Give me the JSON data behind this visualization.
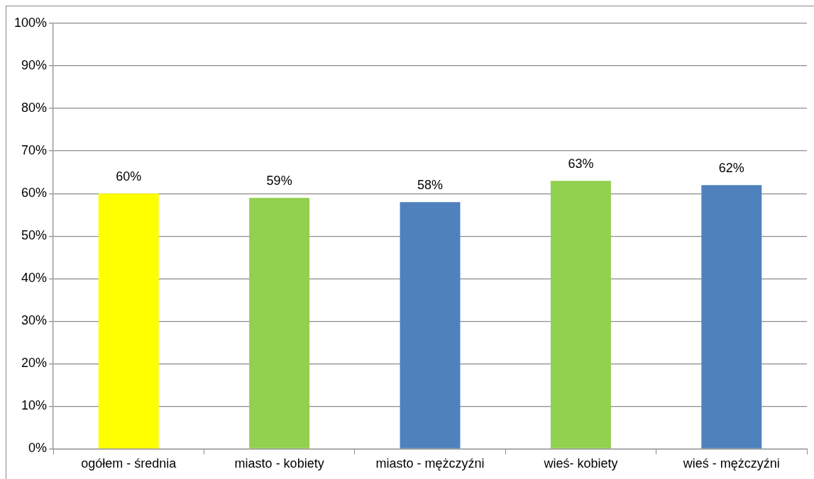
{
  "chart_data": {
    "type": "bar",
    "categories": [
      "ogółem - średnia",
      "miasto - kobiety",
      "miasto - mężczyźni",
      "wieś- kobiety",
      "wieś - mężczyźni"
    ],
    "values": [
      60,
      59,
      58,
      63,
      62
    ],
    "colors": [
      "#ffff00",
      "#92d050",
      "#4f81bd",
      "#92d050",
      "#4f81bd"
    ],
    "value_labels": [
      "60%",
      "59%",
      "58%",
      "63%",
      "62%"
    ],
    "ylim": [
      0,
      100
    ],
    "yticks": [
      {
        "value": 0,
        "label": "0%"
      },
      {
        "value": 10,
        "label": "10%"
      },
      {
        "value": 20,
        "label": "20%"
      },
      {
        "value": 30,
        "label": "30%"
      },
      {
        "value": 40,
        "label": "40%"
      },
      {
        "value": 50,
        "label": "50%"
      },
      {
        "value": 60,
        "label": "60%"
      },
      {
        "value": 70,
        "label": "70%"
      },
      {
        "value": 80,
        "label": "80%"
      },
      {
        "value": 90,
        "label": "90%"
      },
      {
        "value": 100,
        "label": "100%"
      }
    ],
    "grid": "y"
  }
}
